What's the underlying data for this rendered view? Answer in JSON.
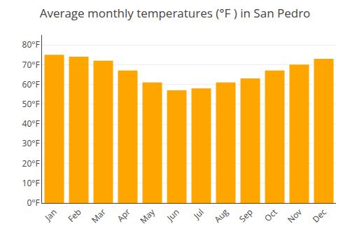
{
  "chart_data": {
    "type": "bar",
    "title": "Average monthly temperatures (°F ) in San Pedro",
    "categories": [
      "Jan",
      "Feb",
      "Mar",
      "Apr",
      "May",
      "Jun",
      "Jul",
      "Aug",
      "Sep",
      "Oct",
      "Nov",
      "Dec"
    ],
    "values": [
      75,
      74,
      72,
      67,
      61,
      57,
      58,
      61,
      63,
      67,
      70,
      73
    ],
    "color": "#FFA500",
    "ylim": [
      0,
      85
    ],
    "yticks": [
      {
        "value": 0,
        "label": "0°F"
      },
      {
        "value": 10,
        "label": "10°F"
      },
      {
        "value": 20,
        "label": "20°F"
      },
      {
        "value": 30,
        "label": "30°F"
      },
      {
        "value": 40,
        "label": "40°F"
      },
      {
        "value": 50,
        "label": "50°F"
      },
      {
        "value": 60,
        "label": "60°F"
      },
      {
        "value": 70,
        "label": "70°F"
      },
      {
        "value": 80,
        "label": "80°F"
      }
    ],
    "grid": true
  }
}
